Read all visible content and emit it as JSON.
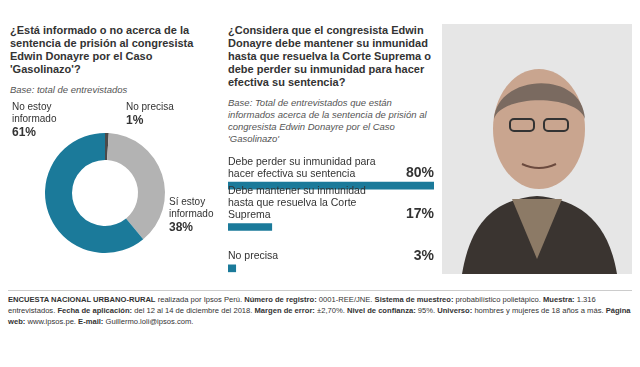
{
  "chart_data": [
    {
      "type": "doughnut",
      "title": "¿Está informado o no acerca de la sentencia de prisión al congresista Edwin Donayre por el Caso 'Gasolinazo'?",
      "subtitle": "Base: total de entrevistados",
      "categories": [
        "No precisa",
        "Sí estoy informado",
        "No estoy informado"
      ],
      "values": [
        1,
        38,
        61
      ],
      "value_labels": [
        "1%",
        "38%",
        "61%"
      ],
      "colors": [
        "#4a4a4a",
        "#b3b3b3",
        "#1b7a9a"
      ],
      "data_labels": true
    },
    {
      "type": "bar",
      "orientation": "horizontal",
      "title": "¿Considera que el congresista Edwin Donayre debe mantener su inmunidad hasta que resuelva la Corte Suprema o debe perder su inmunidad para hacer efectiva su sentencia?",
      "subtitle": "Base: Total de entrevistados que están informados acerca de la sentencia de prisión al congresista Edwin Donayre por el Caso 'Gasolinazo'",
      "categories": [
        "Debe perder su inmunidad para hacer efectiva su sentencia",
        "Debe mantener su inmunidad hasta que resuelva la Corte Suprema",
        "No precisa"
      ],
      "values": [
        80,
        17,
        3
      ],
      "value_labels": [
        "80%",
        "17%",
        "3%"
      ],
      "color": "#1b7a9a",
      "xlim": [
        0,
        80
      ],
      "grid": false,
      "tick_labels": false,
      "data_labels": true
    }
  ],
  "footer": [
    {
      "label": "ENCUESTA NACIONAL URBANO-RURAL",
      "text": "realizada por Ipsos Perú."
    },
    {
      "label": "Número de registro:",
      "text": "0001-REE/JNE."
    },
    {
      "label": "Sistema de muestreo:",
      "text": "probabilístico polietápico."
    },
    {
      "label": "Muestra:",
      "text": "1.316 entrevistados."
    },
    {
      "label": "Fecha de aplicación:",
      "text": "del 12 al 14 de diciembre del 2018."
    },
    {
      "label": "Margen de error:",
      "text": "±2,70%."
    },
    {
      "label": "Nivel de confianza:",
      "text": "95%."
    },
    {
      "label": "Universo:",
      "text": "hombres y mujeres de 18 años a más."
    },
    {
      "label": "Página web:",
      "text": "www.ipsos.pe."
    },
    {
      "label": "E-mail:",
      "text": "Guillermo.loli@ipsos.com."
    }
  ]
}
